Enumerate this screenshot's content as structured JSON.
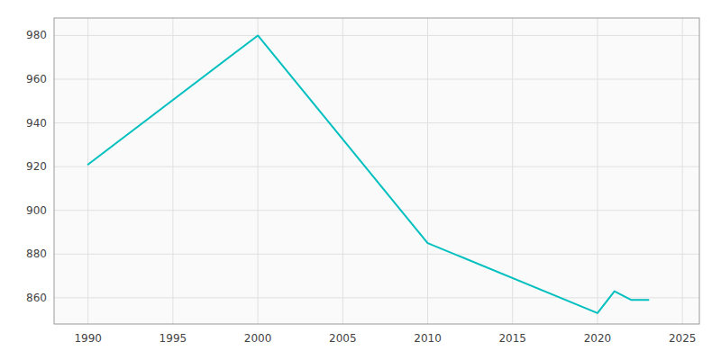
{
  "chart_data": {
    "type": "line",
    "x": [
      1990,
      2000,
      2010,
      2020,
      2021,
      2022,
      2023
    ],
    "values": [
      921,
      980,
      885,
      853,
      863,
      859,
      859
    ],
    "color": "#00BFBF",
    "xlim": [
      1988,
      2026
    ],
    "ylim": [
      848,
      988
    ],
    "xticks": [
      1990,
      1995,
      2000,
      2005,
      2010,
      2015,
      2020,
      2025
    ],
    "yticks": [
      860,
      880,
      900,
      920,
      940,
      960,
      980
    ],
    "grid": true
  }
}
